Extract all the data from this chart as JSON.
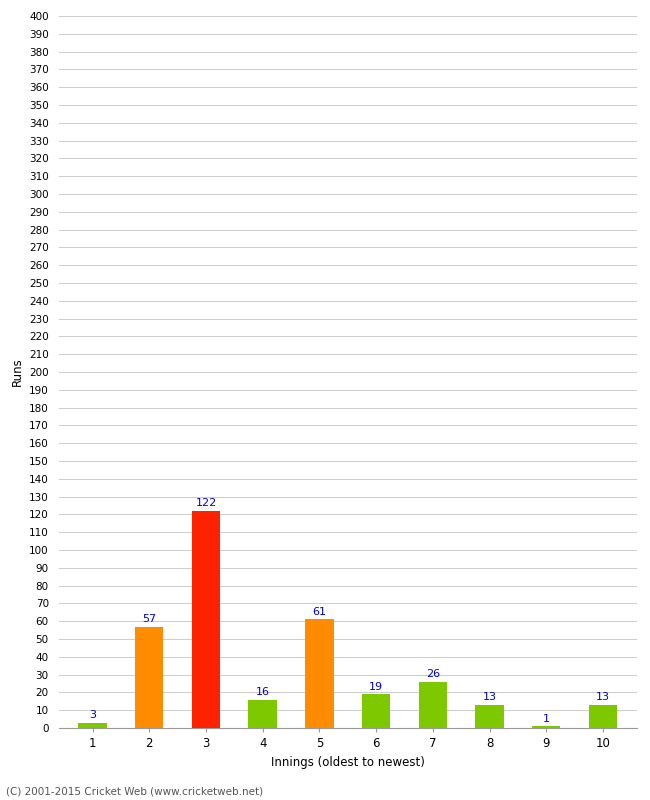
{
  "categories": [
    "1",
    "2",
    "3",
    "4",
    "5",
    "6",
    "7",
    "8",
    "9",
    "10"
  ],
  "values": [
    3,
    57,
    122,
    16,
    61,
    19,
    26,
    13,
    1,
    13
  ],
  "bar_colors": [
    "#7ec800",
    "#ff8c00",
    "#ff2200",
    "#7ec800",
    "#ff8c00",
    "#7ec800",
    "#7ec800",
    "#7ec800",
    "#7ec800",
    "#7ec800"
  ],
  "xlabel": "Innings (oldest to newest)",
  "ylabel": "Runs",
  "ylim": [
    0,
    400
  ],
  "ytick_step": 10,
  "background_color": "#ffffff",
  "grid_color": "#cccccc",
  "label_color": "#0000cc",
  "footer": "(C) 2001-2015 Cricket Web (www.cricketweb.net)",
  "bar_width": 0.5,
  "figsize": [
    6.5,
    8.0
  ],
  "dpi": 100
}
